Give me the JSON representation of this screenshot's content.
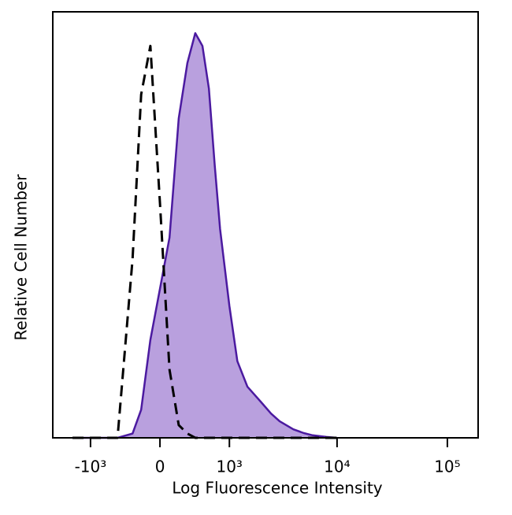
{
  "chart_data": {
    "type": "histogram-overlay",
    "xlabel": "Log Fluorescence Intensity",
    "ylabel": "Relative Cell Number",
    "xscale": "asinh",
    "xlim": [
      -2300,
      190000
    ],
    "ylim": [
      0,
      100
    ],
    "xticks": [
      {
        "value": -1000,
        "label": "-10³"
      },
      0,
      {
        "value": 1000,
        "label": "10³"
      },
      {
        "value": 10000,
        "label": "10⁴"
      },
      {
        "value": 100000,
        "label": "10⁵"
      }
    ],
    "x": [
      -1500,
      -1000,
      -700,
      -500,
      -300,
      -200,
      -100,
      0,
      100,
      200,
      300,
      400,
      500,
      600,
      700,
      800,
      1000,
      1200,
      1500,
      2000,
      2500,
      3000,
      4000,
      5000,
      6000,
      8000,
      10000
    ],
    "series": [
      {
        "color": "#4b1aa0",
        "fill": "#b9a0de",
        "style": "solid",
        "values": [
          0,
          0,
          0,
          0,
          1,
          6.6,
          23,
          35,
          47,
          75,
          88,
          95,
          92,
          82,
          64,
          49,
          31,
          18,
          12,
          8.5,
          5.7,
          3.9,
          2,
          1.1,
          0.6,
          0.2,
          0
        ]
      },
      {
        "color": "#000000",
        "style": "dashed",
        "values": [
          0,
          0,
          0,
          0,
          42,
          80.6,
          92,
          55,
          16,
          3,
          1,
          0,
          0,
          0,
          0,
          0,
          0,
          0,
          0,
          0,
          0,
          0,
          0,
          0,
          0,
          0,
          0
        ]
      }
    ]
  }
}
